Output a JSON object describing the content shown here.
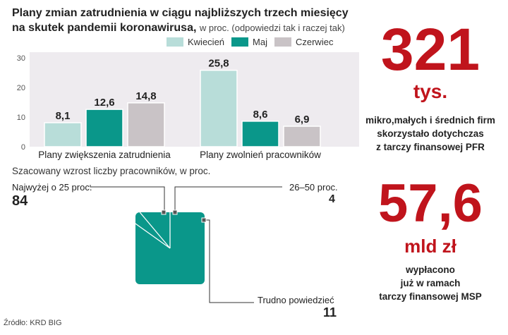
{
  "title": {
    "line1": "Plany zmian zatrudnienia w ciągu najbliższych trzech miesięcy",
    "line2": "na skutek pandemii  koronawirusa,",
    "subtitle": "w proc. (odpowiedzi tak i raczej tak)"
  },
  "colors": {
    "Kwiecień": "#b8ddd9",
    "Maj": "#0a978a",
    "Czerwiec": "#c9c3c6"
  },
  "chart_data": [
    {
      "type": "bar",
      "categories": [
        "Plany zwiększenia zatrudnienia",
        "Plany zwolnień pracowników"
      ],
      "series": [
        {
          "name": "Kwiecień",
          "values": [
            8.1,
            25.8
          ]
        },
        {
          "name": "Maj",
          "values": [
            12.6,
            8.6
          ]
        },
        {
          "name": "Czerwiec",
          "values": [
            14.8,
            6.9
          ]
        }
      ],
      "value_labels": [
        [
          "8,1",
          "25,8"
        ],
        [
          "12,6",
          "8,6"
        ],
        [
          "14,8",
          "6,9"
        ]
      ],
      "yticks": [
        0,
        10,
        20,
        30
      ],
      "ylim": [
        0,
        30
      ],
      "legend": "top-right",
      "grid": false
    },
    {
      "type": "pie",
      "title": "Szacowany wzrost liczby pracowników, w proc.",
      "labels": [
        "Najwyżej o 25 proc.",
        "26–50 proc.",
        "Trudno powiedzieć"
      ],
      "values": [
        84,
        4,
        11
      ]
    }
  ],
  "pie_values_text": [
    "84",
    "4",
    "11"
  ],
  "stats": [
    {
      "value": "321",
      "unit": "tys.",
      "lines": [
        "mikro,małych i średnich firm",
        "skorzystało dotychczas",
        "z tarczy finansowej PFR"
      ]
    },
    {
      "value": "57,6",
      "unit": "mld zł",
      "lines": [
        "wypłacono",
        "już w ramach",
        "tarczy finansowej MSP"
      ]
    }
  ],
  "source": "Źródło: KRD BIG"
}
